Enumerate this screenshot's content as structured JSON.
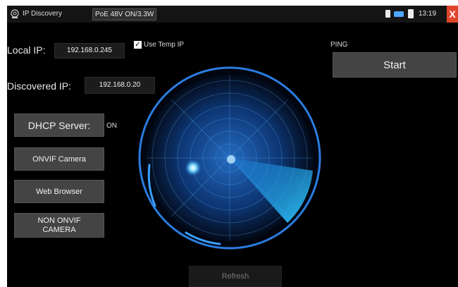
{
  "app": {
    "title": "IP Discovery",
    "poe_status": "PoE 48V ON/3.3W",
    "clock": "13:19",
    "close_glyph": "X"
  },
  "icons": {
    "app": "radar-icon",
    "sd": "sd-card-icon",
    "usb": "usb-icon",
    "battery": "battery-icon"
  },
  "local_ip": {
    "label": "Local IP:",
    "value": "192.168.0.245"
  },
  "use_temp_ip": {
    "label": "Use Temp IP",
    "checked": true
  },
  "discovered_ip": {
    "label": "Discovered IP:",
    "value": "192.168.0.20"
  },
  "ping": {
    "label": "PING",
    "start_label": "Start"
  },
  "dhcp": {
    "label": "DHCP Server:",
    "state": "ON"
  },
  "buttons": {
    "onvif": "ONVIF Camera",
    "web": "Web Browser",
    "non_onvif_line1": "NON ONVIF",
    "non_onvif_line2": "CAMERA",
    "refresh": "Refresh"
  },
  "colors": {
    "background": "#000000",
    "button": "#444444",
    "radar_blue": "#2e86e8",
    "close": "#e0452c"
  }
}
